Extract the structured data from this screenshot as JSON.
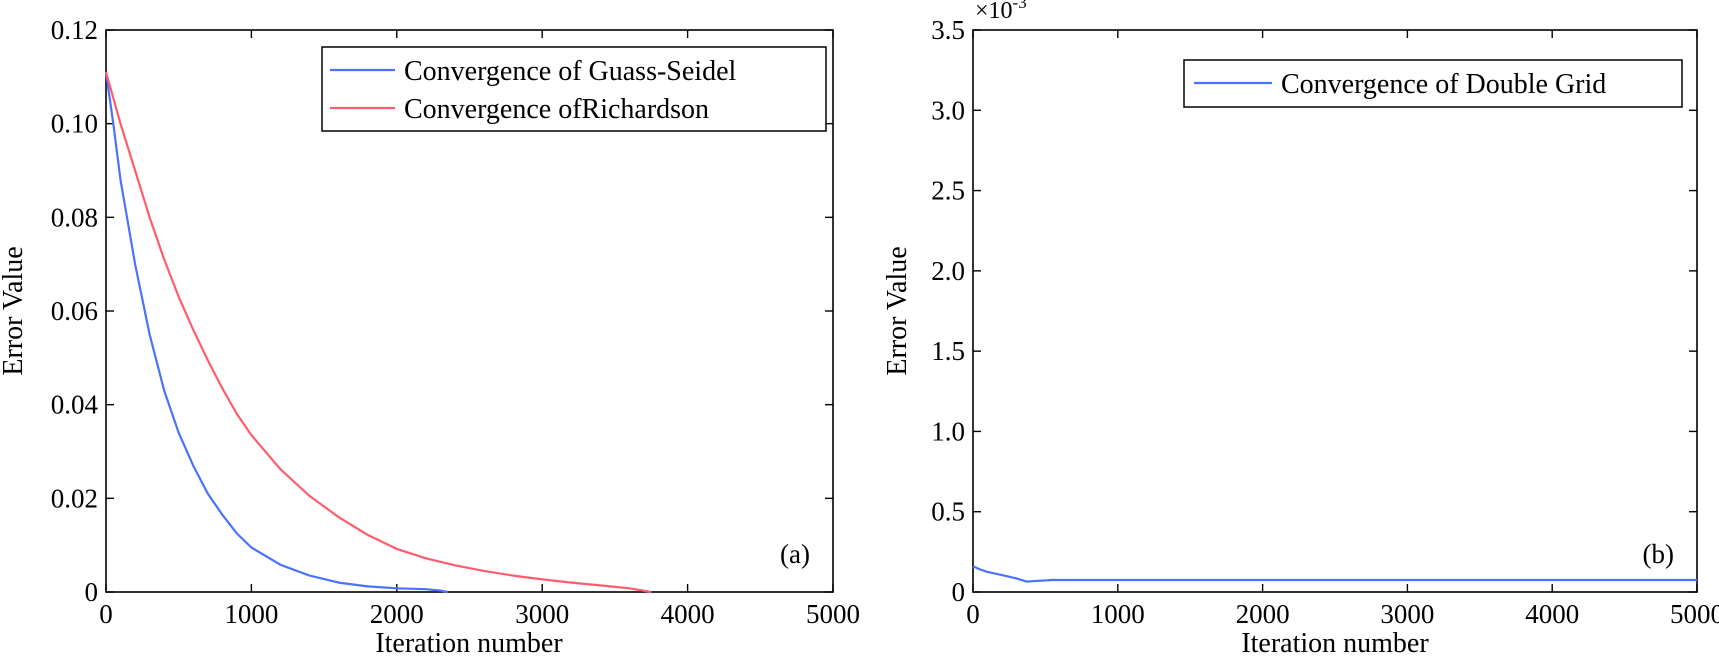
{
  "colors": {
    "blue": "#4a72ff",
    "red": "#ff5d6b",
    "axis": "#000000"
  },
  "chart_data": [
    {
      "type": "line",
      "xlabel": "Iteration number",
      "ylabel": "Error Value",
      "xlim": [
        0,
        5000
      ],
      "ylim": [
        0,
        0.12
      ],
      "x_ticks": [
        0,
        1000,
        2000,
        3000,
        4000,
        5000
      ],
      "x_tick_labels": [
        "0",
        "1000",
        "2000",
        "3000",
        "4000",
        "5000"
      ],
      "y_ticks": [
        0,
        0.02,
        0.04,
        0.06,
        0.08,
        0.1,
        0.12
      ],
      "y_tick_labels": [
        "0",
        "0.02",
        "0.04",
        "0.06",
        "0.08",
        "0.10",
        "0.12"
      ],
      "panel_label": "(a)",
      "legend_position": "top-right",
      "grid": false,
      "series": [
        {
          "name": "Convergence of Guass-Seidel",
          "color": "#4a72ff",
          "x": [
            0,
            50,
            100,
            200,
            300,
            400,
            500,
            600,
            700,
            800,
            900,
            1000,
            1200,
            1400,
            1600,
            1800,
            2000,
            2200,
            2300,
            2350
          ],
          "y": [
            0.111,
            0.1,
            0.088,
            0.07,
            0.055,
            0.043,
            0.034,
            0.027,
            0.021,
            0.0165,
            0.0125,
            0.0095,
            0.0058,
            0.0035,
            0.002,
            0.0012,
            0.0008,
            0.0006,
            0.0003,
            0.0
          ]
        },
        {
          "name": "Convergence ofRichardson",
          "color": "#ff5d6b",
          "x": [
            0,
            100,
            200,
            300,
            400,
            500,
            600,
            700,
            800,
            900,
            1000,
            1200,
            1400,
            1600,
            1800,
            2000,
            2200,
            2400,
            2600,
            2800,
            3000,
            3200,
            3400,
            3600,
            3750
          ],
          "y": [
            0.111,
            0.1,
            0.09,
            0.08,
            0.071,
            0.063,
            0.056,
            0.0495,
            0.0435,
            0.038,
            0.0335,
            0.0262,
            0.0205,
            0.016,
            0.0122,
            0.0092,
            0.0072,
            0.0057,
            0.0045,
            0.0035,
            0.0027,
            0.002,
            0.0014,
            0.0008,
            0.0
          ]
        }
      ]
    },
    {
      "type": "line",
      "xlabel": "Iteration number",
      "ylabel": "Error Value",
      "xlim": [
        0,
        5000
      ],
      "ylim": [
        0,
        3.5
      ],
      "x_ticks": [
        0,
        1000,
        2000,
        3000,
        4000,
        5000
      ],
      "x_tick_labels": [
        "0",
        "1000",
        "2000",
        "3000",
        "4000",
        "5000"
      ],
      "y_ticks": [
        0,
        0.5,
        1,
        1.5,
        2,
        2.5,
        3,
        3.5
      ],
      "y_tick_labels": [
        "0",
        "0.5",
        "1.0",
        "1.5",
        "2.0",
        "2.5",
        "3.0",
        "3.5"
      ],
      "y_multiplier_base": "×10",
      "y_multiplier_exp": "-3",
      "panel_label": "(b)",
      "legend_position": "top-right",
      "grid": false,
      "series": [
        {
          "name": "Convergence of Double Grid",
          "color": "#4a72ff",
          "x": [
            0,
            50,
            100,
            200,
            300,
            370,
            450,
            550,
            700,
            1000,
            2000,
            3000,
            4000,
            5000
          ],
          "y": [
            0.16,
            0.14,
            0.125,
            0.105,
            0.085,
            0.065,
            0.07,
            0.075,
            0.075,
            0.075,
            0.075,
            0.075,
            0.075,
            0.075
          ]
        }
      ]
    }
  ]
}
